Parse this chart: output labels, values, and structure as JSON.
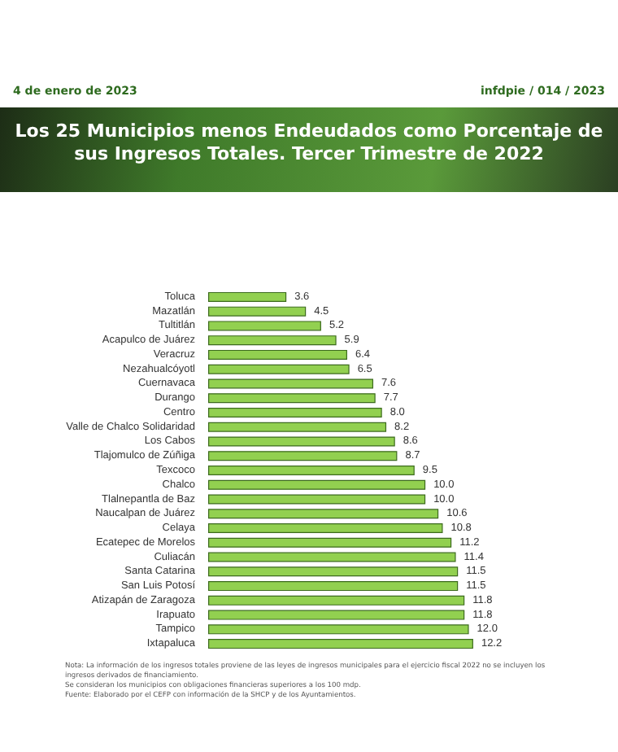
{
  "chart_data": {
    "type": "bar",
    "orientation": "horizontal",
    "title": "Los 25 Municipios menos Endeudados como Porcentaje de sus Ingresos Totales. Tercer Trimestre de 2022",
    "categories": [
      "Toluca",
      "Mazatlán",
      "Tultitlán",
      "Acapulco de Juárez",
      "Veracruz",
      "Nezahualcóyotl",
      "Cuernavaca",
      "Durango",
      "Centro",
      "Valle de Chalco Solidaridad",
      "Los Cabos",
      "Tlajomulco de Zúñiga",
      "Texcoco",
      "Chalco",
      "Tlalnepantla de Baz",
      "Naucalpan de Juárez",
      "Celaya",
      "Ecatepec de Morelos",
      "Culiacán",
      "Santa Catarina",
      "San Luis Potosí",
      "Atizapán de Zaragoza",
      "Irapuato",
      "Tampico",
      "Ixtapaluca"
    ],
    "values": [
      3.6,
      4.5,
      5.2,
      5.9,
      6.4,
      6.5,
      7.6,
      7.7,
      8.0,
      8.2,
      8.6,
      8.7,
      9.5,
      10.0,
      10.0,
      10.6,
      10.8,
      11.2,
      11.4,
      11.5,
      11.5,
      11.8,
      11.8,
      12.0,
      12.2
    ],
    "value_labels": [
      "3.6",
      "4.5",
      "5.2",
      "5.9",
      "6.4",
      "6.5",
      "7.6",
      "7.7",
      "8.0",
      "8.2",
      "8.6",
      "8.7",
      "9.5",
      "10.0",
      "10.0",
      "10.6",
      "10.8",
      "11.2",
      "11.4",
      "11.5",
      "11.5",
      "11.8",
      "11.8",
      "12.0",
      "12.2"
    ],
    "color": "#92d050",
    "tick_labels": "y",
    "annotations": [
      "4 de enero de 2023",
      "infdpie / 014 / 2023",
      "Nota: La información de los ingresos totales proviene de las leyes de ingresos municipales para el ejercicio fiscal 2022 no se incluyen los ingresos derivados de financiamiento.",
      "Se consideran los municipios con obligaciones financieras superiores a los 100 mdp.",
      "Fuente: Elaborado por el CEFP con información de la SHCP y de los Ayuntamientos."
    ]
  }
}
